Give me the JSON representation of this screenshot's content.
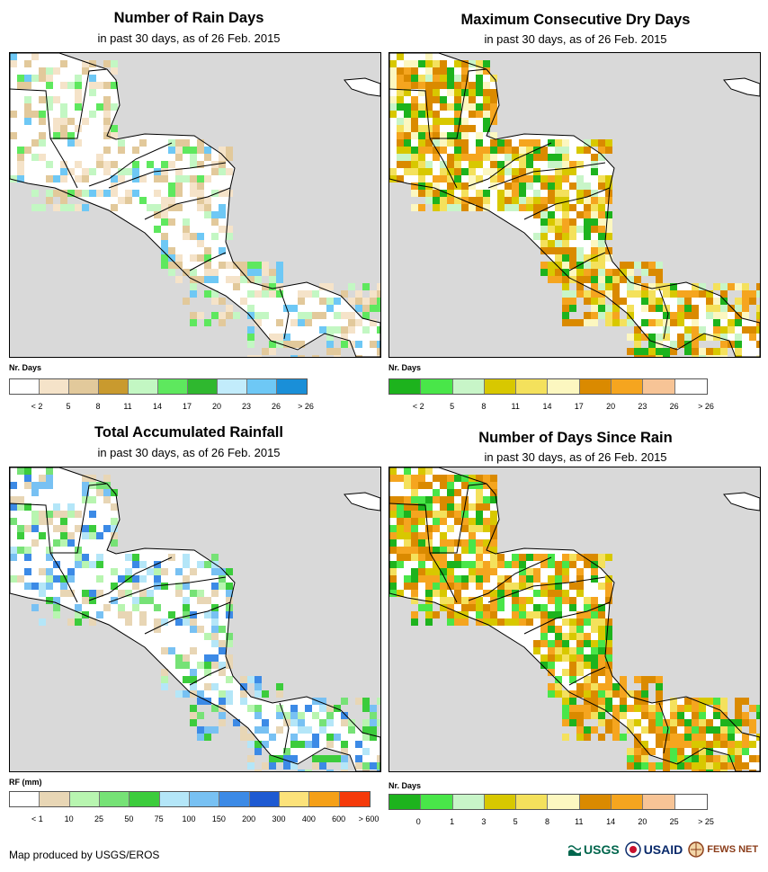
{
  "panels": [
    {
      "title": "Number of Rain Days",
      "subtitle": "in past 30 days, as of 26 Feb. 2015",
      "legend": {
        "title": "Nr. Days",
        "labels": [
          "< 2",
          "5",
          "8",
          "11",
          "14",
          "17",
          "20",
          "23",
          "26",
          "> 26"
        ],
        "colors": [
          "#ffffff",
          "#f5e3c9",
          "#e2c99b",
          "#c99a2e",
          "#c3f7c3",
          "#5ee85e",
          "#2fb82f",
          "#c2ecfb",
          "#6ec8f5",
          "#1a8fd8"
        ]
      }
    },
    {
      "title": "Maximum Consecutive Dry Days",
      "subtitle": "in past 30 days, as of 26 Feb. 2015",
      "legend": {
        "title": "Nr. Days",
        "labels": [
          "< 2",
          "5",
          "8",
          "11",
          "14",
          "17",
          "20",
          "23",
          "26",
          "> 26"
        ],
        "colors": [
          "#1db31d",
          "#49e649",
          "#c8f5c8",
          "#d8c800",
          "#f4e15c",
          "#fcf7c0",
          "#da8a00",
          "#f5a51f",
          "#f7c496",
          "#ffffff"
        ]
      }
    },
    {
      "title": "Total Accumulated Rainfall",
      "subtitle": "in past 30 days, as of 26 Feb. 2015",
      "legend": {
        "title": "RF (mm)",
        "labels": [
          "< 1",
          "10",
          "25",
          "50",
          "75",
          "100",
          "150",
          "200",
          "300",
          "400",
          "600",
          "> 600"
        ],
        "colors": [
          "#ffffff",
          "#e8d6b5",
          "#b8f5b0",
          "#76e276",
          "#3ccc3c",
          "#b4e6f8",
          "#78c1f3",
          "#3c8ae6",
          "#1e5ad2",
          "#fce27a",
          "#f5a018",
          "#f53a0a"
        ]
      }
    },
    {
      "title": "Number of Days Since Rain",
      "subtitle": "in past 30 days, as of 26 Feb. 2015",
      "legend": {
        "title": "Nr. Days",
        "labels": [
          "0",
          "1",
          "3",
          "5",
          "8",
          "11",
          "14",
          "20",
          "25",
          "> 25"
        ],
        "colors": [
          "#1db31d",
          "#49e649",
          "#c8f5c8",
          "#d8c800",
          "#f4e15c",
          "#fcf7c0",
          "#da8a00",
          "#f5a51f",
          "#f7c496",
          "#ffffff"
        ]
      }
    }
  ],
  "footer": {
    "credit": "Map produced by USGS/EROS",
    "logos": [
      "USGS",
      "USAID",
      "FEWS NET"
    ]
  }
}
